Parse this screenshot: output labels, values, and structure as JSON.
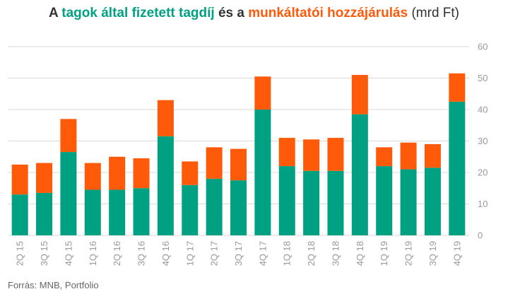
{
  "title": {
    "part1": "A ",
    "part2": "tagok által fizetett tagdíj",
    "part3": " és a ",
    "part4": "munkáltatói hozzájárulás",
    "part5": " (mrd Ft)"
  },
  "source": "Forrás: MNB, Portfolio",
  "colors": {
    "member": "#00a183",
    "employer": "#ff5a0a",
    "grid": "#d9d9d9",
    "text": "#999999"
  },
  "chart_data": {
    "type": "bar",
    "stacked": true,
    "categories": [
      "2Q 15",
      "3Q 15",
      "4Q 15",
      "1Q 16",
      "2Q 16",
      "3Q 16",
      "4Q 16",
      "1Q 17",
      "2Q 17",
      "3Q 17",
      "4Q 17",
      "1Q 18",
      "2Q 18",
      "3Q 18",
      "4Q 18",
      "1Q 19",
      "2Q 19",
      "3Q 19",
      "4Q 19"
    ],
    "series": [
      {
        "name": "tagok által fizetett tagdíj",
        "color": "#00a183",
        "values": [
          13.0,
          13.5,
          26.5,
          14.5,
          14.5,
          15.0,
          31.5,
          16.0,
          18.0,
          17.5,
          40.0,
          22.0,
          20.5,
          20.5,
          38.5,
          22.0,
          21.0,
          21.5,
          42.5
        ]
      },
      {
        "name": "munkáltatói hozzájárulás",
        "color": "#ff5a0a",
        "values": [
          9.5,
          9.5,
          10.5,
          8.5,
          10.5,
          9.5,
          11.5,
          7.5,
          10.0,
          10.0,
          10.5,
          9.0,
          10.0,
          10.5,
          12.5,
          6.0,
          8.5,
          7.5,
          9.0
        ]
      }
    ],
    "ylim": [
      0,
      60
    ],
    "yticks": [
      "0",
      "10",
      "20",
      "30",
      "40",
      "50",
      "60"
    ],
    "y_axis_side": "right",
    "grid": true,
    "legend": "none"
  }
}
